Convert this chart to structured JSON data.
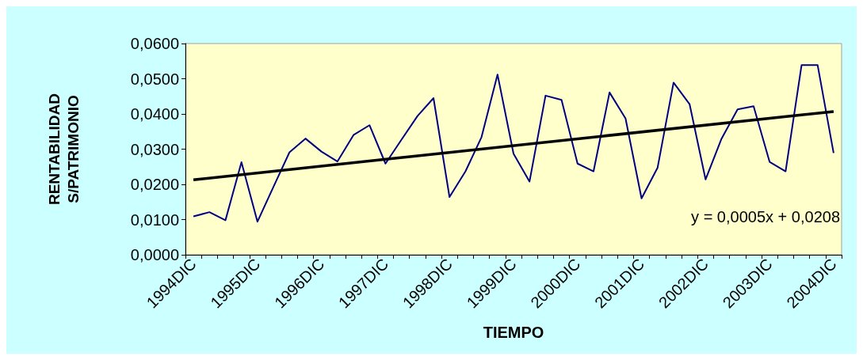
{
  "chart_data": {
    "type": "line",
    "xlabel": "TIEMPO",
    "ylabel": "RENTABILIDAD\nS/PATRIMONIO",
    "categories": [
      "1994DIC",
      null,
      null,
      null,
      "1995DIC",
      null,
      null,
      null,
      "1996DIC",
      null,
      null,
      null,
      "1997DIC",
      null,
      null,
      null,
      "1998DIC",
      null,
      null,
      null,
      "1999DIC",
      null,
      null,
      null,
      "2000DIC",
      null,
      null,
      null,
      "2001DIC",
      null,
      null,
      null,
      "2002DIC",
      null,
      null,
      null,
      "2003DIC",
      null,
      null,
      null,
      "2004DIC"
    ],
    "series": [
      {
        "color": "#000080",
        "values": [
          0.0109,
          0.0121,
          0.0098,
          0.0263,
          0.0094,
          0.0193,
          0.0291,
          0.033,
          0.0293,
          0.0265,
          0.034,
          0.0368,
          0.0259,
          0.0327,
          0.0394,
          0.0445,
          0.0164,
          0.0237,
          0.0334,
          0.0512,
          0.0287,
          0.0208,
          0.0452,
          0.044,
          0.0259,
          0.0237,
          0.0461,
          0.0387,
          0.016,
          0.0247,
          0.0489,
          0.0428,
          0.0214,
          0.033,
          0.0413,
          0.0422,
          0.0264,
          0.0237,
          0.0539,
          0.0539,
          0.0289
        ]
      },
      {
        "type": "line",
        "color": "#000000",
        "x": [
          "1994DIC",
          "2004DIC"
        ],
        "values": [
          0.0213,
          0.0407
        ]
      }
    ],
    "ylim": [
      0,
      0.06
    ],
    "yticks": [
      {
        "value": 0,
        "label": "0,0000"
      },
      {
        "value": 0.01,
        "label": "0,0100"
      },
      {
        "value": 0.02,
        "label": "0,0200"
      },
      {
        "value": 0.03,
        "label": "0,0300"
      },
      {
        "value": 0.04,
        "label": "0,0400"
      },
      {
        "value": 0.05,
        "label": "0,0500"
      },
      {
        "value": 0.06,
        "label": "0,0600"
      }
    ],
    "annotations": [
      "y = 0,0005x + 0,0208"
    ],
    "grid": false,
    "marker": "none",
    "line_style": "solid"
  }
}
